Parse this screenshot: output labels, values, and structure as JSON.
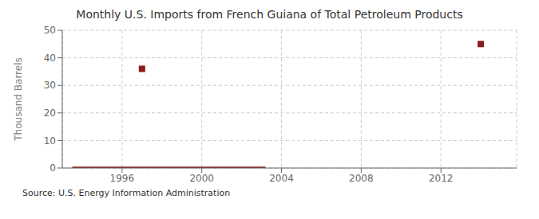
{
  "chart_data": {
    "type": "line",
    "title": "Monthly U.S. Imports from French Guiana of Total Petroleum Products",
    "ylabel": "Thousand Barrels",
    "annotations": [
      "Source: U.S. Energy Information Administration"
    ],
    "series": [
      {
        "type": "line",
        "color": "#8b1a1a",
        "line_style": "solid",
        "x": [
          1993.5,
          2003.2
        ],
        "values": [
          0,
          0
        ]
      },
      {
        "type": "scatter",
        "color": "#8b1a1a",
        "marker": "square",
        "x": [
          1997.0,
          2014.0
        ],
        "values": [
          36,
          45
        ]
      }
    ],
    "xlim": [
      1993.0,
      2015.8
    ],
    "xticks": [
      1996,
      2000,
      2004,
      2008,
      2012
    ],
    "ylim": [
      0,
      50
    ],
    "yticks": [
      0,
      10,
      20,
      30,
      40,
      50
    ],
    "grid": true
  }
}
